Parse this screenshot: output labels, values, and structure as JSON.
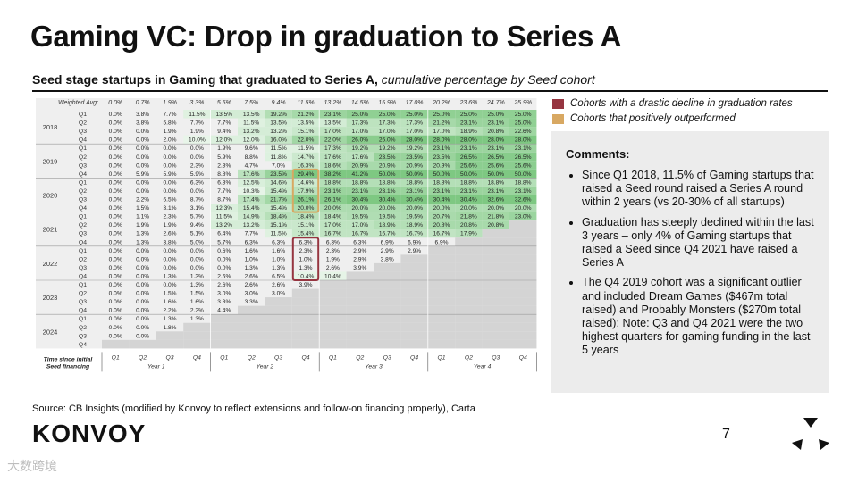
{
  "title": "Gaming VC: Drop in graduation to Series A",
  "subtitle_bold": "Seed stage startups in Gaming that graduated to Series A,",
  "subtitle_italic": "cumulative percentage by Seed cohort",
  "legend": [
    {
      "label": "Cohorts with a drastic decline in graduation rates",
      "color": "#963540"
    },
    {
      "label": "Cohorts that positively outperformed",
      "color": "#d8a862"
    }
  ],
  "comments": {
    "heading": "Comments:",
    "bullets": [
      "Since Q1 2018, 11.5% of Gaming startups that raised a Seed round raised a Series A round within 2 years (vs 20-30% of all startups)",
      "Graduation has steeply declined within the last 3 years – only 4% of Gaming startups that raised a Seed since Q4 2021 have raised a Series A",
      "The Q4 2019 cohort was a significant outlier and included Dream Games ($467m total raised) and Probably Monsters ($270m total raised); Note: Q3 and Q4 2021 were the two highest quarters for gaming funding in the last 5 years"
    ]
  },
  "source": "Source: CB Insights (modified by Konvoy to reflect extensions and follow-on financing properly), Carta",
  "logo": "KONVOY",
  "page_number": "7",
  "watermark": "大数跨境",
  "chart_data": {
    "type": "heatmap",
    "weighted_avg_label": "Weighted Avg:",
    "weighted_avg": [
      "0.0%",
      "0.7%",
      "1.9%",
      "3.3%",
      "5.5%",
      "7.5%",
      "9.4%",
      "11.5%",
      "13.2%",
      "14.5%",
      "15.9%",
      "17.0%",
      "20.2%",
      "23.6%",
      "24.7%",
      "25.9%"
    ],
    "x_title": "Time since initial Seed financing",
    "x_ticks": [
      "Q1",
      "Q2",
      "Q3",
      "Q4",
      "Q1",
      "Q2",
      "Q3",
      "Q4",
      "Q1",
      "Q2",
      "Q3",
      "Q4",
      "Q1",
      "Q2",
      "Q3",
      "Q4"
    ],
    "year_groups": [
      "Year 1",
      "Year 2",
      "Year 3",
      "Year 4"
    ],
    "years": [
      "2018",
      "2019",
      "2020",
      "2021",
      "2022",
      "2023",
      "2024"
    ],
    "quarters": [
      "Q1",
      "Q2",
      "Q3",
      "Q4"
    ],
    "rows": [
      [
        "0.0%",
        "3.8%",
        "7.7%",
        "11.5%",
        "13.5%",
        "13.5%",
        "19.2%",
        "21.2%",
        "23.1%",
        "25.0%",
        "25.0%",
        "25.0%",
        "25.0%",
        "25.0%",
        "25.0%",
        "25.0%"
      ],
      [
        "0.0%",
        "3.8%",
        "5.8%",
        "7.7%",
        "7.7%",
        "11.5%",
        "13.5%",
        "13.5%",
        "13.5%",
        "17.3%",
        "17.3%",
        "17.3%",
        "21.2%",
        "23.1%",
        "23.1%",
        "25.0%"
      ],
      [
        "0.0%",
        "0.0%",
        "1.9%",
        "1.9%",
        "9.4%",
        "13.2%",
        "13.2%",
        "15.1%",
        "17.0%",
        "17.0%",
        "17.0%",
        "17.0%",
        "17.0%",
        "18.9%",
        "20.8%",
        "22.6%"
      ],
      [
        "0.0%",
        "0.0%",
        "2.0%",
        "10.0%",
        "12.0%",
        "12.0%",
        "16.0%",
        "22.0%",
        "22.0%",
        "26.0%",
        "26.0%",
        "28.0%",
        "28.0%",
        "28.0%",
        "28.0%",
        "28.0%"
      ],
      [
        "0.0%",
        "0.0%",
        "0.0%",
        "0.0%",
        "1.9%",
        "9.6%",
        "11.5%",
        "11.5%",
        "17.3%",
        "19.2%",
        "19.2%",
        "19.2%",
        "23.1%",
        "23.1%",
        "23.1%",
        "23.1%"
      ],
      [
        "0.0%",
        "0.0%",
        "0.0%",
        "0.0%",
        "5.9%",
        "8.8%",
        "11.8%",
        "14.7%",
        "17.6%",
        "17.6%",
        "23.5%",
        "23.5%",
        "23.5%",
        "26.5%",
        "26.5%",
        "26.5%"
      ],
      [
        "0.0%",
        "0.0%",
        "0.0%",
        "2.3%",
        "2.3%",
        "4.7%",
        "7.0%",
        "16.3%",
        "18.6%",
        "20.9%",
        "20.9%",
        "20.9%",
        "20.9%",
        "25.6%",
        "25.6%",
        "25.6%"
      ],
      [
        "0.0%",
        "5.9%",
        "5.9%",
        "5.9%",
        "8.8%",
        "17.6%",
        "23.5%",
        "29.4%",
        "38.2%",
        "41.2%",
        "50.0%",
        "50.0%",
        "50.0%",
        "50.0%",
        "50.0%",
        "50.0%"
      ],
      [
        "0.0%",
        "0.0%",
        "0.0%",
        "6.3%",
        "6.3%",
        "12.5%",
        "14.6%",
        "14.6%",
        "18.8%",
        "18.8%",
        "18.8%",
        "18.8%",
        "18.8%",
        "18.8%",
        "18.8%",
        "18.8%"
      ],
      [
        "0.0%",
        "0.0%",
        "0.0%",
        "0.0%",
        "7.7%",
        "10.3%",
        "15.4%",
        "17.9%",
        "23.1%",
        "23.1%",
        "23.1%",
        "23.1%",
        "23.1%",
        "23.1%",
        "23.1%",
        "23.1%"
      ],
      [
        "0.0%",
        "2.2%",
        "6.5%",
        "8.7%",
        "8.7%",
        "17.4%",
        "21.7%",
        "26.1%",
        "26.1%",
        "30.4%",
        "30.4%",
        "30.4%",
        "30.4%",
        "30.4%",
        "32.6%",
        "32.6%"
      ],
      [
        "0.0%",
        "1.5%",
        "3.1%",
        "3.1%",
        "12.3%",
        "15.4%",
        "15.4%",
        "20.0%",
        "20.0%",
        "20.0%",
        "20.0%",
        "20.0%",
        "20.0%",
        "20.0%",
        "20.0%",
        "20.0%"
      ],
      [
        "0.0%",
        "1.1%",
        "2.3%",
        "5.7%",
        "11.5%",
        "14.9%",
        "18.4%",
        "18.4%",
        "18.4%",
        "19.5%",
        "19.5%",
        "19.5%",
        "20.7%",
        "21.8%",
        "21.8%",
        "23.0%"
      ],
      [
        "0.0%",
        "1.9%",
        "1.9%",
        "9.4%",
        "13.2%",
        "13.2%",
        "15.1%",
        "15.1%",
        "17.0%",
        "17.0%",
        "18.9%",
        "18.9%",
        "20.8%",
        "20.8%",
        "20.8%",
        ""
      ],
      [
        "0.0%",
        "1.3%",
        "2.6%",
        "5.1%",
        "6.4%",
        "7.7%",
        "11.5%",
        "15.4%",
        "16.7%",
        "16.7%",
        "16.7%",
        "16.7%",
        "16.7%",
        "17.9%",
        "",
        ""
      ],
      [
        "0.0%",
        "1.3%",
        "3.8%",
        "5.0%",
        "5.7%",
        "6.3%",
        "6.3%",
        "6.3%",
        "6.3%",
        "6.3%",
        "6.9%",
        "6.9%",
        "6.9%",
        "",
        "",
        ""
      ],
      [
        "0.0%",
        "0.0%",
        "0.0%",
        "0.0%",
        "0.6%",
        "1.6%",
        "1.6%",
        "2.3%",
        "2.3%",
        "2.9%",
        "2.9%",
        "2.9%",
        "",
        "",
        "",
        ""
      ],
      [
        "0.0%",
        "0.0%",
        "0.0%",
        "0.0%",
        "0.0%",
        "1.0%",
        "1.0%",
        "1.0%",
        "1.9%",
        "2.9%",
        "3.8%",
        "",
        "",
        "",
        "",
        ""
      ],
      [
        "0.0%",
        "0.0%",
        "0.0%",
        "0.0%",
        "0.0%",
        "1.3%",
        "1.3%",
        "1.3%",
        "2.6%",
        "3.9%",
        "",
        "",
        "",
        "",
        "",
        ""
      ],
      [
        "0.0%",
        "0.0%",
        "1.3%",
        "1.3%",
        "2.6%",
        "2.6%",
        "6.5%",
        "10.4%",
        "10.4%",
        "",
        "",
        "",
        "",
        "",
        "",
        ""
      ],
      [
        "0.0%",
        "0.0%",
        "0.0%",
        "1.3%",
        "2.6%",
        "2.6%",
        "2.6%",
        "3.9%",
        "",
        "",
        "",
        "",
        "",
        "",
        "",
        ""
      ],
      [
        "0.0%",
        "0.0%",
        "1.5%",
        "1.5%",
        "3.0%",
        "3.0%",
        "3.0%",
        "",
        "",
        "",
        "",
        "",
        "",
        "",
        "",
        ""
      ],
      [
        "0.0%",
        "0.0%",
        "1.6%",
        "1.6%",
        "3.3%",
        "3.3%",
        "",
        "",
        "",
        "",
        "",
        "",
        "",
        "",
        "",
        ""
      ],
      [
        "0.0%",
        "0.0%",
        "2.2%",
        "2.2%",
        "4.4%",
        "",
        "",
        "",
        "",
        "",
        "",
        "",
        "",
        "",
        "",
        ""
      ],
      [
        "0.0%",
        "0.0%",
        "1.3%",
        "1.3%",
        "",
        "",
        "",
        "",
        "",
        "",
        "",
        "",
        "",
        "",
        "",
        ""
      ],
      [
        "0.0%",
        "0.0%",
        "1.8%",
        "",
        "",
        "",
        "",
        "",
        "",
        "",
        "",
        "",
        "",
        "",
        "",
        ""
      ],
      [
        "0.0%",
        "0.0%",
        "",
        "",
        "",
        "",
        "",
        "",
        "",
        "",
        "",
        "",
        "",
        "",
        "",
        ""
      ],
      [
        "",
        "",
        "",
        "",
        "",
        "",
        "",
        "",
        "",
        "",
        "",
        "",
        "",
        "",
        "",
        ""
      ]
    ],
    "highlight_outperform": {
      "column": 7,
      "row_from": 7,
      "row_to": 11
    },
    "highlight_decline": {
      "column": 7,
      "row_from": 15,
      "row_to": 19
    }
  }
}
